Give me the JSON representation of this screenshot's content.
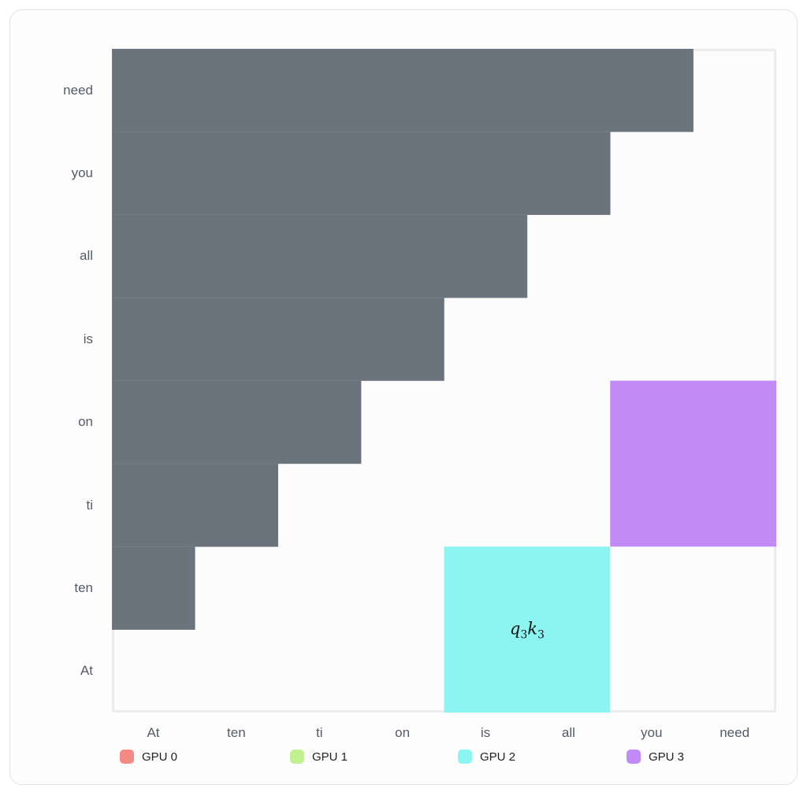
{
  "diagram": {
    "tokens": [
      "At",
      "ten",
      "ti",
      "on",
      "is",
      "all",
      "you",
      "need"
    ],
    "masked_color": "#6b737d",
    "blocks": [
      {
        "gpu": "GPU 2",
        "cols": [
          4,
          5
        ],
        "rows": [
          0,
          1
        ],
        "color": "#8cf5f2",
        "label": "q3k3"
      },
      {
        "gpu": "GPU 3",
        "cols": [
          6,
          7
        ],
        "rows": [
          2,
          3
        ],
        "color": "#c18af5",
        "label": ""
      }
    ],
    "block_label": {
      "q": "q",
      "q_sub": "3",
      "k": "k",
      "k_sub": "3"
    }
  },
  "legend": [
    {
      "label": "GPU 0",
      "color": "#f48a84"
    },
    {
      "label": "GPU 1",
      "color": "#c1f08e"
    },
    {
      "label": "GPU 2",
      "color": "#8cf5f2"
    },
    {
      "label": "GPU 3",
      "color": "#c18af5"
    }
  ]
}
